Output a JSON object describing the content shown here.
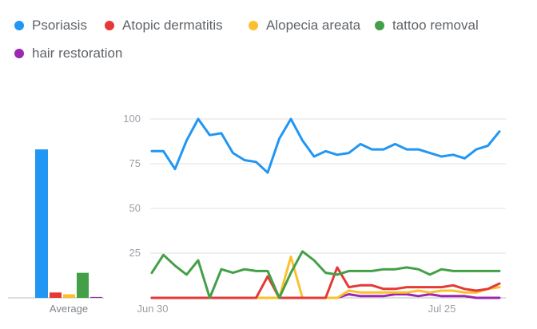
{
  "legend": [
    {
      "name": "Psoriasis",
      "color": "#2196f3"
    },
    {
      "name": "Atopic dermatitis",
      "color": "#e53935"
    },
    {
      "name": "Alopecia areata",
      "color": "#fbc02d"
    },
    {
      "name": "tattoo removal",
      "color": "#43a047"
    },
    {
      "name": "hair restoration",
      "color": "#9c27b0"
    }
  ],
  "chart_data": {
    "type": "line",
    "x_tick_labels": [
      "Jun 30",
      "Jul 25"
    ],
    "y_ticks": [
      25,
      50,
      75,
      100
    ],
    "ylim": [
      0,
      100
    ],
    "grid": true,
    "legend_position": "top",
    "average_label": "Average",
    "averages": [
      {
        "name": "Psoriasis",
        "value": 83
      },
      {
        "name": "Atopic dermatitis",
        "value": 3
      },
      {
        "name": "Alopecia areata",
        "value": 2
      },
      {
        "name": "tattoo removal",
        "value": 14
      },
      {
        "name": "hair restoration",
        "value": 0.5
      }
    ],
    "series": [
      {
        "name": "Psoriasis",
        "color": "#2196f3",
        "values": [
          82,
          82,
          72,
          88,
          100,
          91,
          92,
          81,
          77,
          76,
          70,
          89,
          100,
          88,
          79,
          82,
          80,
          81,
          86,
          83,
          83,
          86,
          83,
          83,
          81,
          79,
          80,
          78,
          83,
          85,
          93
        ]
      },
      {
        "name": "Atopic dermatitis",
        "color": "#e53935",
        "values": [
          0,
          0,
          0,
          0,
          0,
          0,
          0,
          0,
          0,
          0,
          12,
          0,
          0,
          0,
          0,
          0,
          17,
          6,
          7,
          7,
          5,
          5,
          6,
          6,
          6,
          6,
          7,
          5,
          4,
          5,
          8
        ]
      },
      {
        "name": "Alopecia areata",
        "color": "#fbc02d",
        "values": [
          0,
          0,
          0,
          0,
          0,
          0,
          0,
          0,
          0,
          0,
          0,
          0,
          23,
          0,
          0,
          0,
          0,
          4,
          3,
          3,
          3,
          3,
          3,
          4,
          3,
          4,
          4,
          3,
          3,
          5,
          6
        ]
      },
      {
        "name": "tattoo removal",
        "color": "#43a047",
        "values": [
          14,
          24,
          18,
          13,
          21,
          0,
          16,
          14,
          16,
          15,
          15,
          0,
          14,
          26,
          21,
          14,
          13,
          15,
          15,
          15,
          16,
          16,
          17,
          16,
          13,
          16,
          15,
          15,
          15,
          15,
          15
        ]
      },
      {
        "name": "hair restoration",
        "color": "#9c27b0",
        "values": [
          0,
          0,
          0,
          0,
          0,
          0,
          0,
          0,
          0,
          0,
          0,
          0,
          0,
          0,
          0,
          0,
          0,
          2,
          1,
          1,
          1,
          2,
          2,
          1,
          2,
          1,
          1,
          1,
          0,
          0,
          0
        ]
      }
    ]
  }
}
